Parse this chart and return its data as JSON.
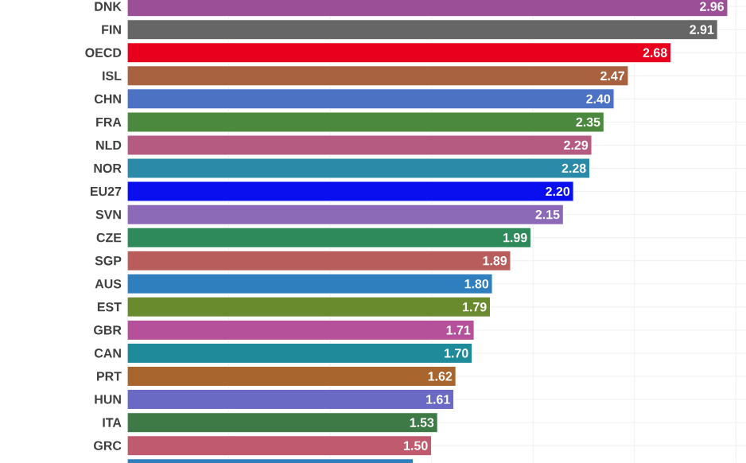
{
  "chart_data": {
    "type": "bar",
    "orientation": "horizontal",
    "categories": [
      "DNK",
      "FIN",
      "OECD",
      "ISL",
      "CHN",
      "FRA",
      "NLD",
      "NOR",
      "EU27",
      "SVN",
      "CZE",
      "SGP",
      "AUS",
      "EST",
      "GBR",
      "CAN",
      "PRT",
      "HUN",
      "ITA",
      "GRC",
      null
    ],
    "values": [
      2.96,
      2.91,
      2.68,
      2.47,
      2.4,
      2.35,
      2.29,
      2.28,
      2.2,
      2.15,
      1.99,
      1.89,
      1.8,
      1.79,
      1.71,
      1.7,
      1.62,
      1.61,
      1.53,
      1.5,
      1.41
    ],
    "value_labels": [
      "2.96",
      "2.91",
      "2.68",
      "2.47",
      "2.40",
      "2.35",
      "2.29",
      "2.28",
      "2.20",
      "2.15",
      "1.99",
      "1.89",
      "1.80",
      "1.79",
      "1.71",
      "1.70",
      "1.62",
      "1.61",
      "1.53",
      "1.50",
      null
    ],
    "colors": [
      "#9a4f96",
      "#666666",
      "#e8001c",
      "#a8623f",
      "#4c72c4",
      "#4b8a3e",
      "#b55a80",
      "#2a8aa8",
      "#0a0ff0",
      "#8c6ab8",
      "#2e8a5a",
      "#b85c5c",
      "#2f7fbf",
      "#6a8a2e",
      "#b5509a",
      "#1f8a9a",
      "#a8662e",
      "#6a6ac4",
      "#3e7a46",
      "#c05a6e",
      "#2f7fbf"
    ],
    "xlim": [
      0,
      3.05
    ],
    "xticks": [
      {
        "value": 0,
        "label": null
      },
      {
        "value": 0.5,
        "label": null
      },
      {
        "value": 1,
        "label": null
      },
      {
        "value": 1.5,
        "label": null
      },
      {
        "value": 2,
        "label": null
      },
      {
        "value": 2.5,
        "label": null
      },
      {
        "value": 3,
        "label": null
      }
    ],
    "grid": true,
    "tick_labels": "y"
  }
}
